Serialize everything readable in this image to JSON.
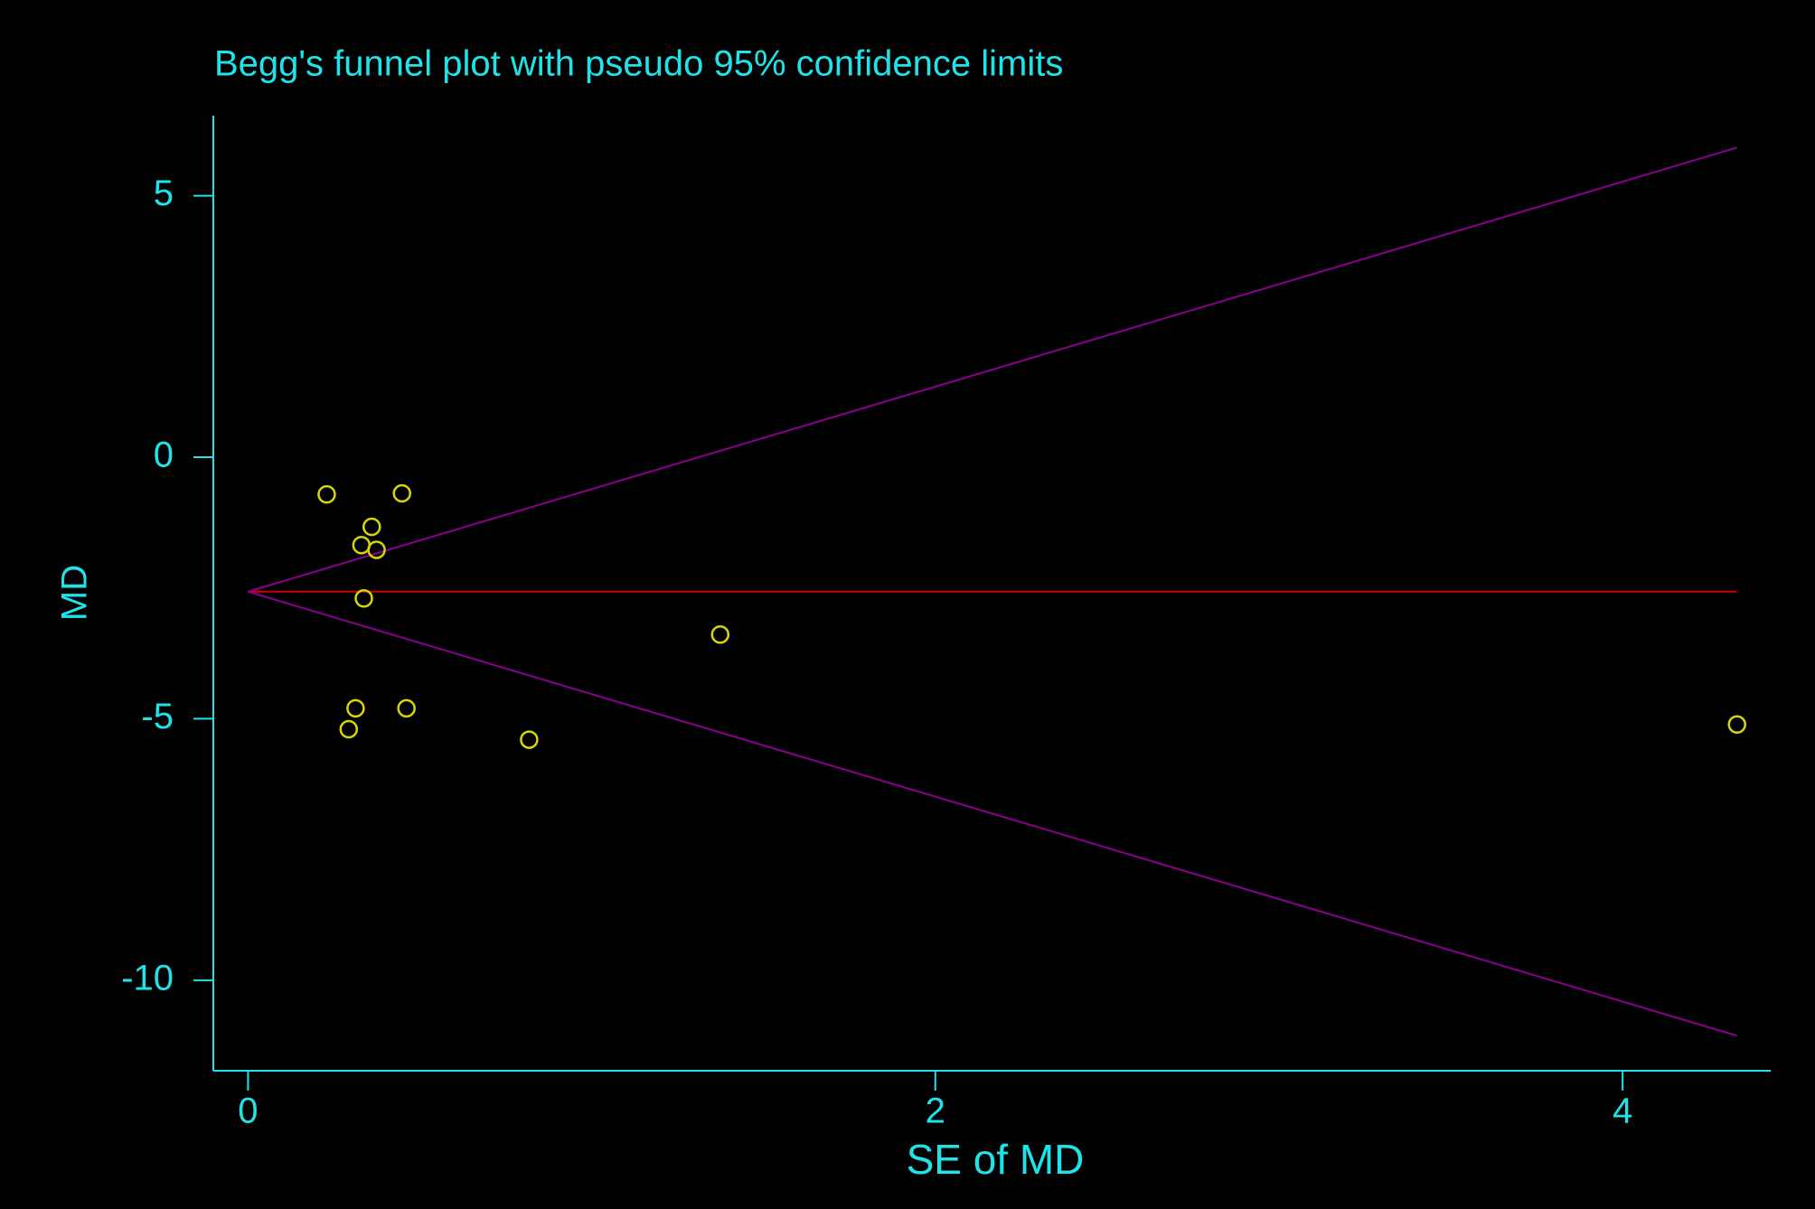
{
  "chart_data": {
    "type": "scatter",
    "title": "Begg's funnel plot with pseudo 95% confidence limits",
    "x_label": "SE of MD",
    "y_label": "MD",
    "xlim": [
      -0.101,
      4.431
    ],
    "ylim": [
      -11.73,
      6.53
    ],
    "xticks": [
      0,
      2,
      4
    ],
    "yticks": [
      5,
      0,
      -5,
      -10
    ],
    "text_color": "#1fe3e8",
    "point_color": "#d8d800",
    "x": [
      0.229,
      0.448,
      0.36,
      0.33,
      0.374,
      0.337,
      0.313,
      0.461,
      0.293,
      0.818,
      1.374,
      4.333
    ],
    "values": [
      -0.71,
      -0.69,
      -1.33,
      -1.68,
      -1.77,
      -2.7,
      -4.8,
      -4.8,
      -5.2,
      -5.4,
      -3.39,
      -5.11
    ],
    "lines": [
      {
        "color": "#c80000",
        "x": [
          0,
          4.333
        ],
        "values": [
          -2.57,
          -2.57
        ]
      },
      {
        "color": "#8b008b",
        "x": [
          0,
          4.333
        ],
        "values": [
          -2.57,
          5.92
        ]
      },
      {
        "color": "#8b008b",
        "x": [
          0,
          4.333
        ],
        "values": [
          -2.57,
          -11.06
        ]
      }
    ]
  }
}
